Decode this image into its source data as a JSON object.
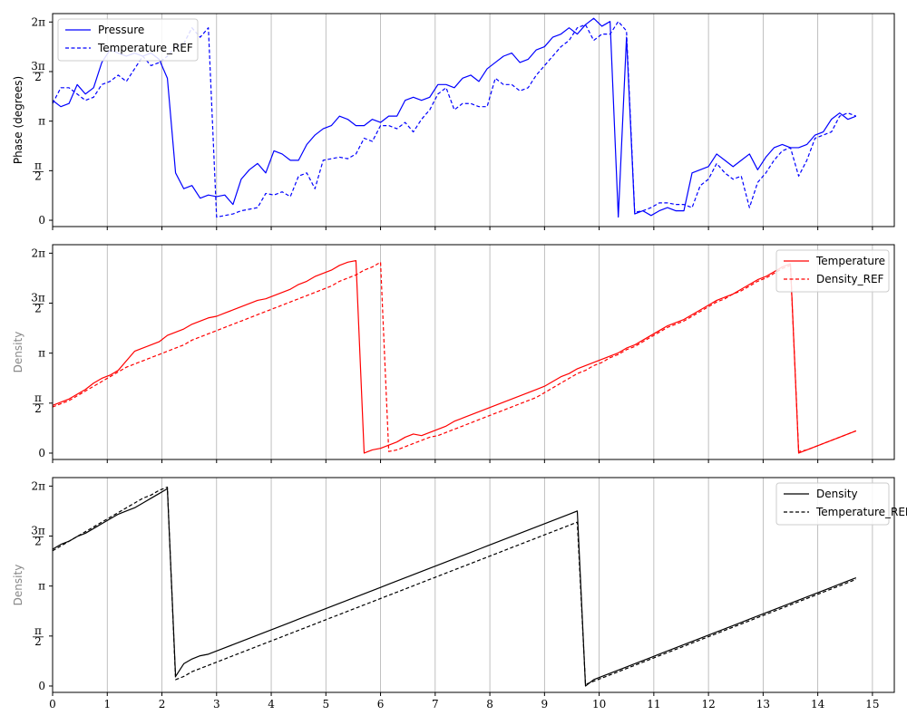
{
  "chart_data": {
    "type": "line",
    "x": [
      0,
      0.15,
      0.3,
      0.45,
      0.6,
      0.75,
      0.9,
      1.05,
      1.2,
      1.35,
      1.5,
      1.65,
      1.8,
      1.95,
      2.1,
      2.25,
      2.4,
      2.55,
      2.7,
      2.85,
      3.0,
      3.15,
      3.3,
      3.45,
      3.6,
      3.75,
      3.9,
      4.05,
      4.2,
      4.35,
      4.5,
      4.65,
      4.8,
      4.95,
      5.1,
      5.25,
      5.4,
      5.55,
      5.7,
      5.85,
      6.0,
      6.15,
      6.3,
      6.45,
      6.6,
      6.75,
      6.9,
      7.05,
      7.2,
      7.35,
      7.5,
      7.65,
      7.8,
      7.95,
      8.1,
      8.25,
      8.4,
      8.55,
      8.7,
      8.85,
      9.0,
      9.15,
      9.3,
      9.45,
      9.6,
      9.75,
      9.9,
      10.05,
      10.2,
      10.35,
      10.5,
      10.65,
      10.8,
      10.95,
      11.1,
      11.25,
      11.4,
      11.55,
      11.7,
      11.85,
      12.0,
      12.15,
      12.3,
      12.45,
      12.6,
      12.75,
      12.9,
      13.05,
      13.2,
      13.35,
      13.5,
      13.65,
      13.8,
      13.95,
      14.1,
      14.25,
      14.4,
      14.55,
      14.7
    ],
    "xlim": [
      0,
      15.4
    ],
    "xticks": [
      "0",
      "1",
      "2",
      "3",
      "4",
      "5",
      "6",
      "7",
      "8",
      "9",
      "10",
      "11",
      "12",
      "13",
      "14",
      "15"
    ],
    "yticks": [
      "0",
      "π/2",
      "π",
      "3π/2",
      "2π"
    ],
    "grid": "vertical",
    "panels": [
      {
        "ylabel": "Phase (degrees)",
        "ylabel_color": "#000000",
        "ylim": [
          -0.2,
          6.55
        ],
        "legend": "top-left",
        "series": [
          {
            "name": "Pressure",
            "color": "#0000ff",
            "dash": "solid",
            "values": [
              3.8,
              3.6,
              3.7,
              4.3,
              4.0,
              4.2,
              5.0,
              5.4,
              5.3,
              5.2,
              5.3,
              5.2,
              5.3,
              5.1,
              4.5,
              1.5,
              1.0,
              1.1,
              0.7,
              0.8,
              0.75,
              0.8,
              0.5,
              1.3,
              1.6,
              1.8,
              1.5,
              2.2,
              2.1,
              1.9,
              1.9,
              2.4,
              2.7,
              2.9,
              3.0,
              3.3,
              3.2,
              3.0,
              3.0,
              3.2,
              3.1,
              3.3,
              3.3,
              3.8,
              3.9,
              3.8,
              3.9,
              4.3,
              4.3,
              4.2,
              4.5,
              4.6,
              4.4,
              4.8,
              5.0,
              5.2,
              5.3,
              5.0,
              5.1,
              5.4,
              5.5,
              5.8,
              5.9,
              6.1,
              5.9,
              6.2,
              6.4,
              6.15,
              6.3,
              0.1,
              5.8,
              0.2,
              0.3,
              0.15,
              0.3,
              0.4,
              0.3,
              0.3,
              1.5,
              1.6,
              1.7,
              2.1,
              1.9,
              1.7,
              1.9,
              2.1,
              1.6,
              2.0,
              2.3,
              2.4,
              2.3,
              2.3,
              2.4,
              2.7,
              2.8,
              3.2,
              3.4,
              3.2,
              3.3
            ],
            "comment": "approximate"
          },
          {
            "name": "Temperature_REF",
            "color": "#0000ff",
            "dash": "dashed",
            "values": [
              3.7,
              4.2,
              4.2,
              4.0,
              3.8,
              3.9,
              4.3,
              4.4,
              4.6,
              4.4,
              4.8,
              5.2,
              4.9,
              5.0,
              5.2,
              5.5,
              5.6,
              6.1,
              5.8,
              6.1,
              0.1,
              0.15,
              0.2,
              0.3,
              0.35,
              0.4,
              0.85,
              0.8,
              0.9,
              0.75,
              1.4,
              1.5,
              1.0,
              1.9,
              1.95,
              2.0,
              1.95,
              2.1,
              2.6,
              2.5,
              3.0,
              3.0,
              2.9,
              3.1,
              2.8,
              3.2,
              3.5,
              4.0,
              4.2,
              3.5,
              3.7,
              3.7,
              3.6,
              3.6,
              4.5,
              4.3,
              4.3,
              4.1,
              4.2,
              4.6,
              4.9,
              5.2,
              5.5,
              5.7,
              6.1,
              6.2,
              5.7,
              5.9,
              5.9,
              6.3,
              6.0,
              0.25,
              0.3,
              0.4,
              0.55,
              0.55,
              0.5,
              0.5,
              0.4,
              1.1,
              1.3,
              1.8,
              1.5,
              1.3,
              1.4,
              0.4,
              1.2,
              1.5,
              1.9,
              2.2,
              2.3,
              1.4,
              1.9,
              2.6,
              2.7,
              2.8,
              3.3,
              3.4,
              3.3
            ],
            "comment": "approximate"
          }
        ]
      },
      {
        "ylabel": "Density",
        "ylabel_color": "#888888",
        "ylim": [
          -0.2,
          6.55
        ],
        "legend": "top-right",
        "series": [
          {
            "name": "Temperature",
            "color": "#ff0000",
            "dash": "solid",
            "values": [
              1.5,
              1.6,
              1.7,
              1.85,
              2.0,
              2.2,
              2.35,
              2.45,
              2.6,
              2.9,
              3.2,
              3.3,
              3.4,
              3.5,
              3.7,
              3.8,
              3.9,
              4.05,
              4.15,
              4.25,
              4.3,
              4.4,
              4.5,
              4.6,
              4.7,
              4.8,
              4.85,
              4.95,
              5.05,
              5.15,
              5.3,
              5.4,
              5.55,
              5.65,
              5.75,
              5.9,
              6.0,
              6.05,
              0.0,
              0.1,
              0.15,
              0.25,
              0.35,
              0.5,
              0.6,
              0.55,
              0.65,
              0.75,
              0.85,
              1.0,
              1.1,
              1.2,
              1.3,
              1.4,
              1.5,
              1.6,
              1.7,
              1.8,
              1.9,
              2.0,
              2.1,
              2.25,
              2.4,
              2.5,
              2.65,
              2.75,
              2.85,
              2.95,
              3.05,
              3.15,
              3.3,
              3.4,
              3.55,
              3.7,
              3.85,
              4.0,
              4.1,
              4.2,
              4.35,
              4.5,
              4.65,
              4.8,
              4.9,
              5.0,
              5.15,
              5.3,
              5.45,
              5.55,
              5.7,
              5.85,
              5.95,
              0.0,
              0.1,
              0.2,
              0.3,
              0.4,
              0.5,
              0.6,
              0.7
            ],
            "comment": "approximate"
          },
          {
            "name": "Density_REF",
            "color": "#ff0000",
            "dash": "dashed",
            "values": [
              1.45,
              1.55,
              1.65,
              1.8,
              1.95,
              2.1,
              2.25,
              2.4,
              2.55,
              2.7,
              2.8,
              2.9,
              3.0,
              3.1,
              3.2,
              3.3,
              3.4,
              3.55,
              3.65,
              3.75,
              3.85,
              3.95,
              4.05,
              4.15,
              4.25,
              4.35,
              4.45,
              4.55,
              4.65,
              4.75,
              4.85,
              4.95,
              5.05,
              5.15,
              5.25,
              5.4,
              5.5,
              5.6,
              5.75,
              5.85,
              6.0,
              0.05,
              0.1,
              0.2,
              0.3,
              0.4,
              0.5,
              0.55,
              0.65,
              0.75,
              0.85,
              0.95,
              1.05,
              1.15,
              1.25,
              1.35,
              1.45,
              1.55,
              1.65,
              1.75,
              1.9,
              2.05,
              2.2,
              2.35,
              2.5,
              2.6,
              2.75,
              2.85,
              3.0,
              3.1,
              3.25,
              3.35,
              3.5,
              3.65,
              3.8,
              3.95,
              4.05,
              4.15,
              4.3,
              4.45,
              4.6,
              4.75,
              4.85,
              5.0,
              5.1,
              5.25,
              5.4,
              5.5,
              5.65,
              5.8,
              5.9,
              0.05,
              0.1,
              0.2,
              0.3,
              0.4,
              0.5,
              0.6,
              0.7
            ],
            "comment": "approximate"
          }
        ]
      },
      {
        "ylabel": "Density",
        "ylabel_color": "#888888",
        "ylim": [
          -0.2,
          6.55
        ],
        "legend": "top-right",
        "series": [
          {
            "name": "Density",
            "color": "#000000",
            "dash": "solid",
            "values": [
              4.3,
              4.45,
              4.55,
              4.7,
              4.8,
              4.95,
              5.1,
              5.25,
              5.4,
              5.5,
              5.6,
              5.75,
              5.9,
              6.05,
              6.2,
              0.3,
              0.7,
              0.85,
              0.95,
              1.0,
              1.1,
              1.2,
              1.3,
              1.4,
              1.5,
              1.6,
              1.7,
              1.8,
              1.9,
              2.0,
              2.1,
              2.2,
              2.3,
              2.4,
              2.5,
              2.6,
              2.7,
              2.8,
              2.9,
              3.0,
              3.1,
              3.2,
              3.3,
              3.4,
              3.5,
              3.6,
              3.7,
              3.8,
              3.9,
              4.0,
              4.1,
              4.2,
              4.3,
              4.4,
              4.5,
              4.6,
              4.7,
              4.8,
              4.9,
              5.0,
              5.1,
              5.2,
              5.3,
              5.4,
              5.5,
              0.0,
              0.2,
              0.3,
              0.4,
              0.5,
              0.6,
              0.7,
              0.8,
              0.9,
              1.0,
              1.1,
              1.2,
              1.3,
              1.4,
              1.5,
              1.6,
              1.7,
              1.8,
              1.9,
              2.0,
              2.1,
              2.2,
              2.3,
              2.4,
              2.5,
              2.6,
              2.7,
              2.8,
              2.9,
              3.0,
              3.1,
              3.2,
              3.3,
              3.4
            ],
            "comment": "approximate"
          },
          {
            "name": "Temperature_REF",
            "color": "#000000",
            "dash": "dashed",
            "values": [
              4.25,
              4.4,
              4.55,
              4.7,
              4.85,
              5.0,
              5.15,
              5.3,
              5.45,
              5.6,
              5.75,
              5.9,
              6.0,
              6.15,
              6.25,
              0.2,
              0.3,
              0.45,
              0.55,
              0.65,
              0.75,
              0.85,
              0.95,
              1.05,
              1.15,
              1.25,
              1.35,
              1.45,
              1.55,
              1.65,
              1.75,
              1.85,
              1.95,
              2.05,
              2.15,
              2.25,
              2.35,
              2.45,
              2.55,
              2.65,
              2.75,
              2.85,
              2.95,
              3.05,
              3.15,
              3.25,
              3.35,
              3.45,
              3.55,
              3.65,
              3.75,
              3.85,
              3.95,
              4.05,
              4.15,
              4.25,
              4.35,
              4.45,
              4.55,
              4.65,
              4.75,
              4.85,
              4.95,
              5.05,
              5.15,
              0.05,
              0.15,
              0.25,
              0.35,
              0.45,
              0.55,
              0.65,
              0.75,
              0.85,
              0.95,
              1.05,
              1.15,
              1.25,
              1.35,
              1.45,
              1.55,
              1.65,
              1.75,
              1.85,
              1.95,
              2.05,
              2.15,
              2.25,
              2.35,
              2.45,
              2.55,
              2.65,
              2.75,
              2.85,
              2.95,
              3.05,
              3.15,
              3.25,
              3.35
            ],
            "comment": "approximate"
          }
        ]
      }
    ]
  }
}
